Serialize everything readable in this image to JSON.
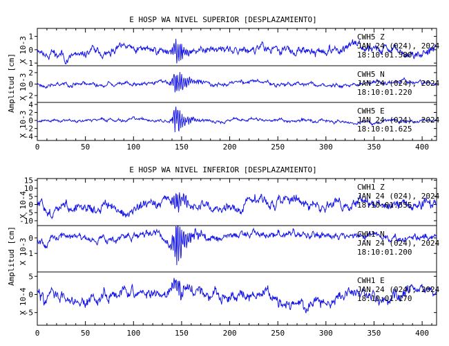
{
  "trace_color": "#1414e6",
  "chart_data": [
    {
      "type": "line",
      "title": "E HOSP WA NIVEL SUPERIOR [DESPLAZAMIENTO]",
      "ylabel": "Amplitud [cm]",
      "xlim": [
        0,
        415
      ],
      "xticks": [
        "0",
        "50",
        "100",
        "150",
        "200",
        "250",
        "300",
        "350",
        "400"
      ],
      "grid": false,
      "traces": [
        {
          "station": "CWH5",
          "component": "Z",
          "date": "JAN 24 (024), 2024",
          "time": "18:10:01.580",
          "multiplier": "X 10-3",
          "ylim": [
            -1.2,
            1.6
          ],
          "yticks": [
            "1",
            "0",
            "-1"
          ],
          "y_values": [
            1,
            0,
            -1
          ],
          "event_peak": 1.0,
          "background_rms": 0.45,
          "seed": 11
        },
        {
          "station": "CWH5",
          "component": "N",
          "date": "JAN 24 (024), 2024",
          "time": "18:10:01.220",
          "multiplier": "X 10-3",
          "ylim": [
            -3.2,
            3.2
          ],
          "yticks": [
            "2",
            "0",
            "-2"
          ],
          "y_values": [
            2,
            0,
            -2
          ],
          "event_peak": 2.9,
          "background_rms": 0.5,
          "seed": 23
        },
        {
          "station": "CWH5",
          "component": "E",
          "date": "JAN 24 (024), 2024",
          "time": "18:10:01.625",
          "multiplier": "X 10-3",
          "ylim": [
            -5,
            4.5
          ],
          "yticks": [
            "4",
            "2",
            "0",
            "-2",
            "-4"
          ],
          "y_values": [
            4,
            2,
            0,
            -2,
            -4
          ],
          "event_peak": 4.2,
          "background_rms": 0.55,
          "seed": 37
        }
      ]
    },
    {
      "type": "line",
      "title": "E HOSP WA NIVEL INFERIOR [DESPLAZAMIENTO]",
      "ylabel": "Amplitud [cm]",
      "xlim": [
        0,
        415
      ],
      "xticks": [
        "0",
        "50",
        "100",
        "150",
        "200",
        "250",
        "300",
        "350",
        "400"
      ],
      "grid": false,
      "traces": [
        {
          "station": "CWH1",
          "component": "Z",
          "date": "JAN 24 (024), 2024",
          "time": "18:10:01.555",
          "multiplier": "X 10-4",
          "ylim": [
            -13,
            16
          ],
          "yticks": [
            "15",
            "10",
            "5",
            "0",
            "-5",
            "-10"
          ],
          "y_values": [
            15,
            10,
            5,
            0,
            -5,
            -10
          ],
          "event_peak": 7,
          "background_rms": 4.5,
          "seed": 51
        },
        {
          "station": "CWH1",
          "component": "N",
          "date": "JAN 24 (024), 2024",
          "time": "18:10:01.200",
          "multiplier": "X 10-3",
          "ylim": [
            -2.2,
            0.8
          ],
          "yticks": [
            "0",
            "-1"
          ],
          "y_values": [
            0,
            -1
          ],
          "event_peak": 1.9,
          "background_rms": 0.35,
          "seed": 67
        },
        {
          "station": "CWH1",
          "component": "E",
          "date": "JAN 24 (024), 2024",
          "time": "18:10:01.170",
          "multiplier": "X 10-4",
          "ylim": [
            -8.5,
            6.2
          ],
          "yticks": [
            "5",
            "0",
            "-5"
          ],
          "y_values": [
            5,
            0,
            -5
          ],
          "event_peak": 3,
          "background_rms": 2.3,
          "seed": 83
        }
      ]
    }
  ]
}
